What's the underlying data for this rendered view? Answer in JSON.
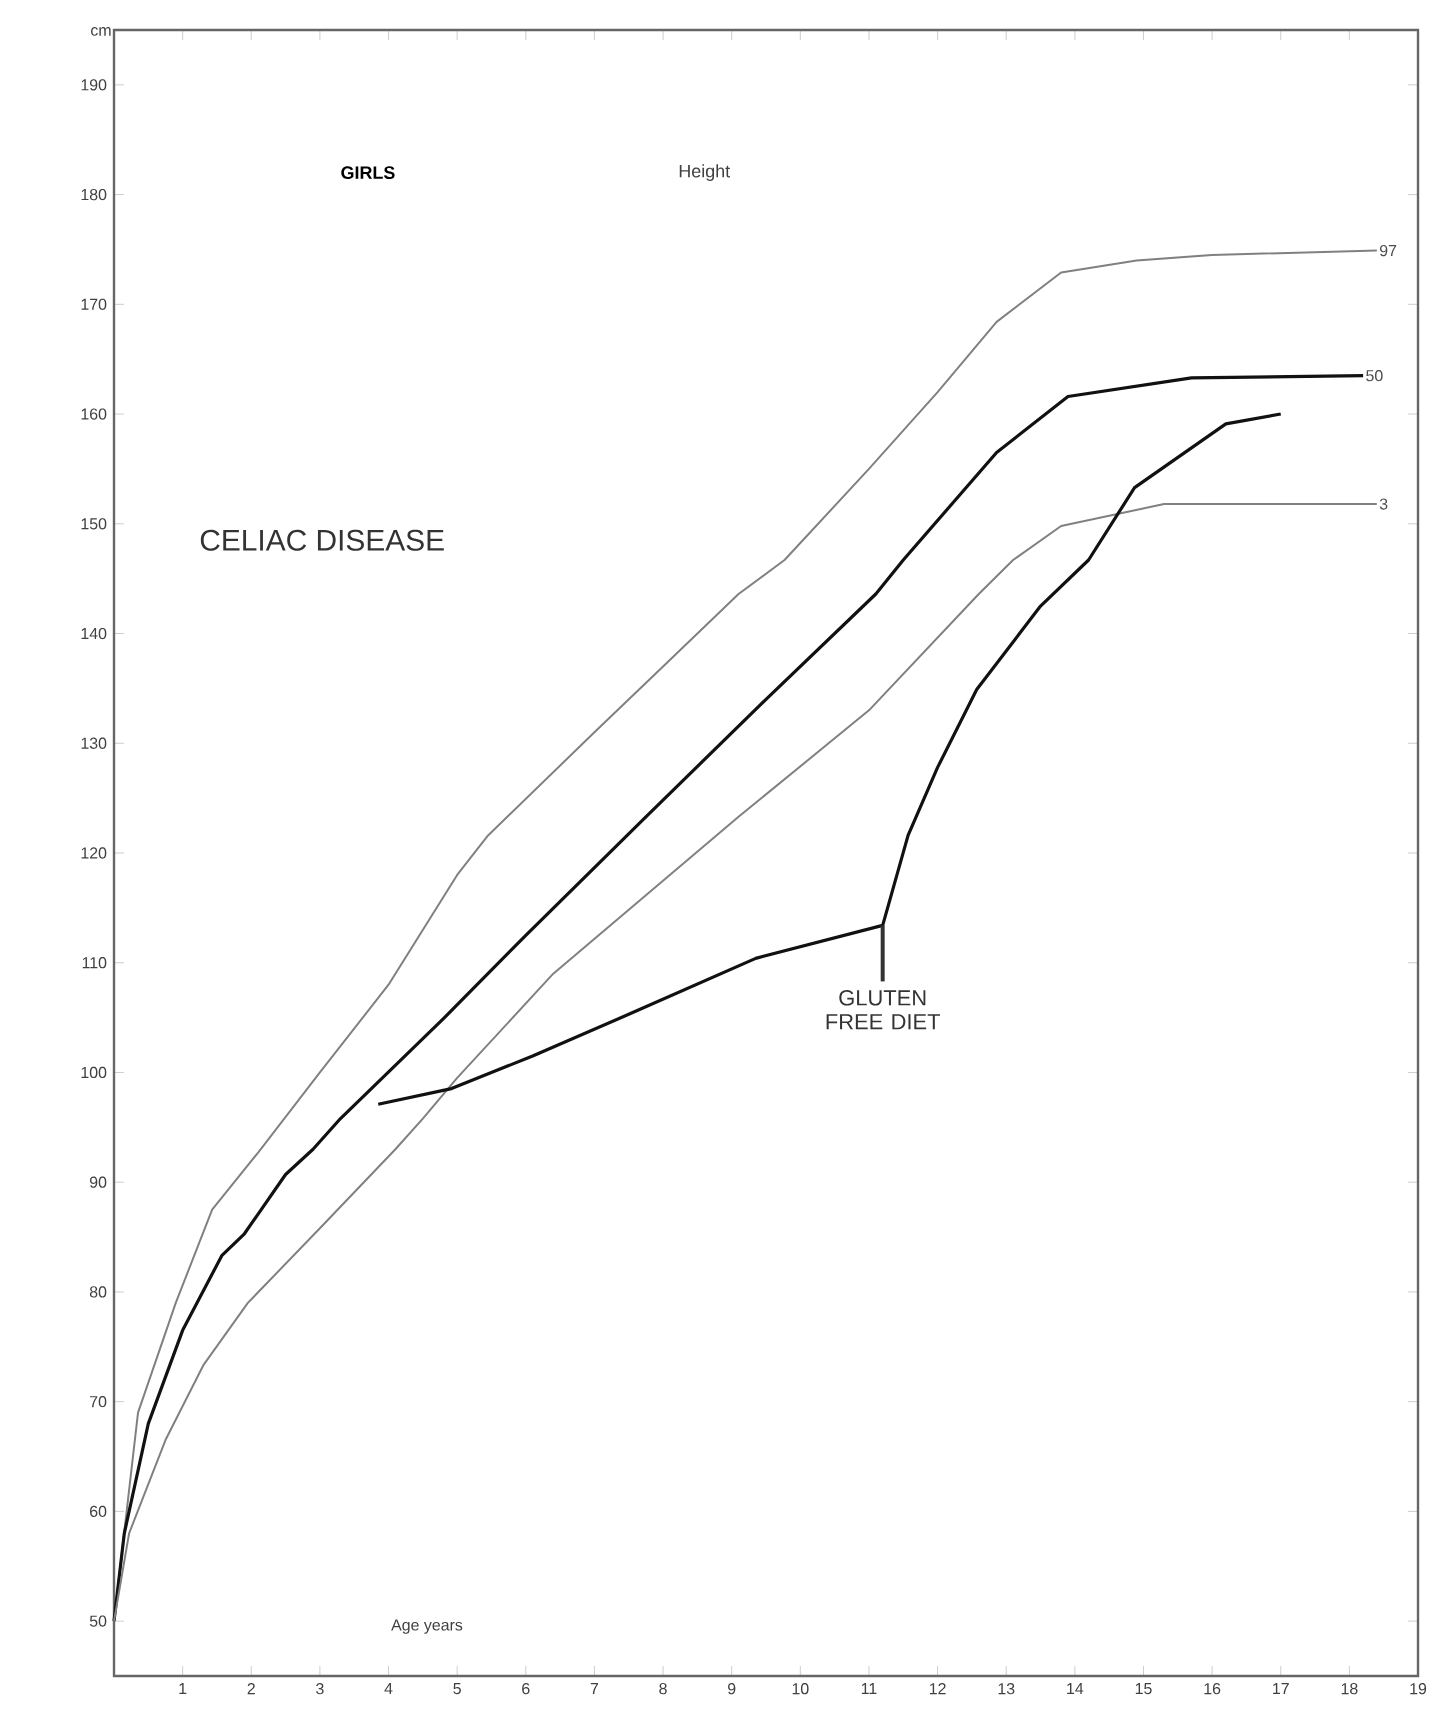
{
  "chart_data": {
    "type": "line",
    "title": "GIRLS",
    "subtitle": "Height",
    "xlabel": "Age years",
    "ylabel": "cm",
    "annotations": [
      "CELIAC DISEASE",
      {
        "text": "GLUTEN FREE DIET",
        "x": 11.2,
        "y": 113.4
      }
    ],
    "xlim": [
      0,
      19
    ],
    "ylim": [
      45,
      195
    ],
    "xticks": [
      1,
      2,
      3,
      4,
      5,
      6,
      7,
      8,
      9,
      10,
      11,
      12,
      13,
      14,
      15,
      16,
      17,
      18,
      19
    ],
    "yticks": [
      50,
      60,
      70,
      80,
      90,
      100,
      110,
      120,
      130,
      140,
      150,
      160,
      170,
      180,
      190
    ],
    "series": [
      {
        "name": "97",
        "color": "#808080",
        "x": [
          0,
          0.35,
          0.9,
          1.43,
          2.1,
          3,
          4,
          5,
          5.45,
          7,
          8,
          9.1,
          9.77,
          11,
          12,
          12.86,
          13.8,
          14.9,
          16,
          18.4
        ],
        "values": [
          50,
          69,
          79,
          87.5,
          92.7,
          100,
          108,
          118,
          121.6,
          131,
          137,
          143.6,
          146.7,
          155,
          162,
          168.4,
          172.9,
          174,
          174.5,
          174.9
        ]
      },
      {
        "name": "50",
        "color": "#111111",
        "x": [
          0,
          0.15,
          0.5,
          1,
          1.57,
          1.9,
          2.5,
          2.9,
          3.3,
          4.8,
          6,
          7.75,
          9.5,
          11.1,
          11.5,
          12.86,
          13.9,
          15.7,
          18.2
        ],
        "values": [
          50,
          58,
          68,
          76.5,
          83.3,
          85.3,
          90.7,
          93,
          95.8,
          104.9,
          112.5,
          123.3,
          134,
          143.6,
          146.7,
          156.5,
          161.6,
          163.3,
          163.5
        ]
      },
      {
        "name": "3",
        "color": "#808080",
        "x": [
          0,
          0.22,
          0.75,
          1.3,
          1.95,
          3,
          4.1,
          4.5,
          5,
          6.4,
          9.1,
          11,
          12.6,
          13.1,
          13.8,
          15.3,
          18.4
        ],
        "values": [
          50,
          58,
          66.5,
          73.3,
          79,
          85.8,
          93,
          95.8,
          99.5,
          109,
          123.3,
          133,
          143.6,
          146.7,
          149.8,
          151.8,
          151.8
        ]
      },
      {
        "color": "#111111",
        "x": [
          3.85,
          4.9,
          6.1,
          7.5,
          9.35,
          11.2,
          11.57,
          12,
          12.57,
          13.5,
          14.2,
          14.87,
          16.2,
          17
        ],
        "values": [
          97.1,
          98.5,
          101.5,
          105.3,
          110.4,
          113.4,
          121.6,
          127.8,
          134.9,
          142.5,
          146.7,
          153.3,
          159.1,
          160
        ]
      }
    ]
  }
}
